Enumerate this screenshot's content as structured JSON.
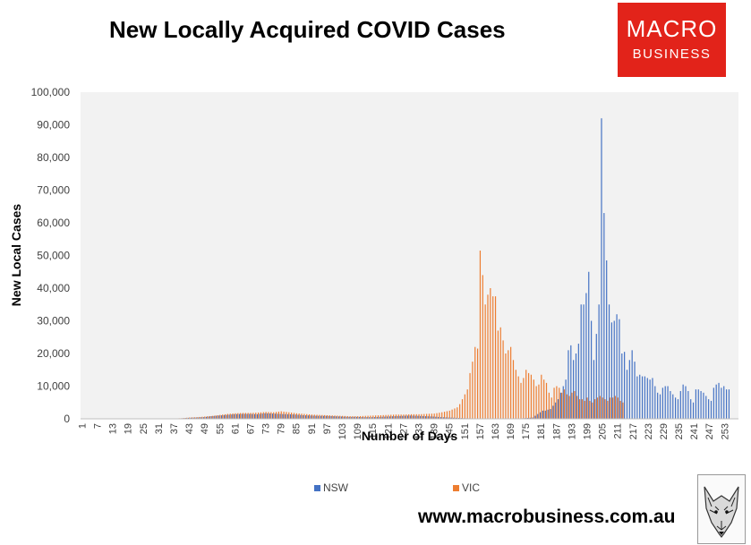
{
  "title": "New Locally Acquired COVID Cases",
  "logo": {
    "line1": "MACRO",
    "line2": "BUSINESS",
    "color": "#e2231a"
  },
  "website": "www.macrobusiness.com.au",
  "chart_data": {
    "type": "bar",
    "title": "New Locally Acquired COVID Cases",
    "xlabel": "Number of Days",
    "ylabel": "New Local Cases",
    "x_range": [
      1,
      258
    ],
    "x_tick_labels": [
      "1",
      "7",
      "13",
      "19",
      "25",
      "31",
      "37",
      "43",
      "49",
      "55",
      "61",
      "67",
      "73",
      "79",
      "85",
      "91",
      "97",
      "103",
      "109",
      "115",
      "121",
      "127",
      "133",
      "139",
      "145",
      "151",
      "157",
      "163",
      "169",
      "175",
      "181",
      "187",
      "193",
      "199",
      "205",
      "211",
      "217",
      "223",
      "229",
      "235",
      "241",
      "247",
      "253"
    ],
    "y_tick_labels": [
      "0",
      "10,000",
      "20,000",
      "30,000",
      "40,000",
      "50,000",
      "60,000",
      "70,000",
      "80,000",
      "90,000",
      "100,000"
    ],
    "ylim": [
      0,
      100000
    ],
    "grid": false,
    "legend_position": "bottom",
    "series": [
      {
        "name": "NSW",
        "color": "#4472c4",
        "points": [
          [
            37,
            50
          ],
          [
            40,
            150
          ],
          [
            43,
            300
          ],
          [
            46,
            400
          ],
          [
            49,
            500
          ],
          [
            52,
            800
          ],
          [
            55,
            1000
          ],
          [
            58,
            1200
          ],
          [
            61,
            1400
          ],
          [
            64,
            1500
          ],
          [
            67,
            1500
          ],
          [
            70,
            1400
          ],
          [
            73,
            1700
          ],
          [
            76,
            1600
          ],
          [
            79,
            1500
          ],
          [
            82,
            1400
          ],
          [
            85,
            1300
          ],
          [
            88,
            1100
          ],
          [
            91,
            1000
          ],
          [
            94,
            900
          ],
          [
            97,
            900
          ],
          [
            100,
            800
          ],
          [
            103,
            700
          ],
          [
            106,
            600
          ],
          [
            109,
            600
          ],
          [
            112,
            500
          ],
          [
            115,
            500
          ],
          [
            118,
            600
          ],
          [
            121,
            700
          ],
          [
            124,
            800
          ],
          [
            127,
            900
          ],
          [
            130,
            1000
          ],
          [
            133,
            900
          ],
          [
            136,
            800
          ],
          [
            139,
            700
          ],
          [
            142,
            500
          ],
          [
            145,
            400
          ],
          [
            148,
            300
          ],
          [
            151,
            200
          ],
          [
            154,
            150
          ],
          [
            157,
            100
          ],
          [
            160,
            100
          ],
          [
            163,
            100
          ],
          [
            166,
            100
          ],
          [
            169,
            100
          ],
          [
            172,
            100
          ],
          [
            175,
            200
          ],
          [
            178,
            400
          ],
          [
            181,
            2000
          ],
          [
            182,
            2500
          ],
          [
            183,
            2500
          ],
          [
            184,
            2800
          ],
          [
            185,
            3000
          ],
          [
            186,
            4000
          ],
          [
            187,
            5000
          ],
          [
            188,
            6000
          ],
          [
            189,
            8000
          ],
          [
            190,
            10000
          ],
          [
            191,
            12000
          ],
          [
            192,
            21000
          ],
          [
            193,
            22500
          ],
          [
            194,
            18000
          ],
          [
            195,
            20000
          ],
          [
            196,
            23000
          ],
          [
            197,
            35000
          ],
          [
            198,
            35000
          ],
          [
            199,
            38500
          ],
          [
            200,
            45000
          ],
          [
            201,
            30000
          ],
          [
            202,
            18000
          ],
          [
            203,
            26000
          ],
          [
            204,
            35000
          ],
          [
            205,
            92000
          ],
          [
            206,
            63000
          ],
          [
            207,
            48500
          ],
          [
            208,
            35000
          ],
          [
            209,
            29500
          ],
          [
            210,
            30000
          ],
          [
            211,
            32000
          ],
          [
            212,
            30500
          ],
          [
            213,
            20000
          ],
          [
            214,
            20500
          ],
          [
            215,
            15000
          ],
          [
            216,
            18000
          ],
          [
            217,
            21000
          ],
          [
            218,
            17500
          ],
          [
            219,
            13000
          ],
          [
            220,
            13500
          ],
          [
            221,
            13000
          ],
          [
            222,
            13000
          ],
          [
            223,
            12500
          ],
          [
            224,
            12000
          ],
          [
            225,
            12500
          ],
          [
            226,
            10000
          ],
          [
            227,
            8000
          ],
          [
            228,
            7500
          ],
          [
            229,
            9500
          ],
          [
            230,
            10000
          ],
          [
            231,
            10000
          ],
          [
            232,
            8500
          ],
          [
            233,
            7500
          ],
          [
            234,
            6500
          ],
          [
            235,
            6000
          ],
          [
            236,
            8500
          ],
          [
            237,
            10500
          ],
          [
            238,
            10000
          ],
          [
            239,
            8500
          ],
          [
            240,
            6000
          ],
          [
            241,
            5000
          ],
          [
            242,
            9000
          ],
          [
            243,
            9000
          ],
          [
            244,
            8500
          ],
          [
            245,
            8000
          ],
          [
            246,
            7000
          ],
          [
            247,
            6000
          ],
          [
            248,
            5500
          ],
          [
            249,
            9500
          ],
          [
            250,
            10500
          ],
          [
            251,
            11000
          ],
          [
            252,
            9500
          ],
          [
            253,
            10000
          ],
          [
            254,
            9000
          ],
          [
            255,
            9000
          ]
        ]
      },
      {
        "name": "VIC",
        "color": "#ed7d31",
        "points": [
          [
            37,
            100
          ],
          [
            40,
            200
          ],
          [
            43,
            400
          ],
          [
            46,
            500
          ],
          [
            49,
            700
          ],
          [
            52,
            900
          ],
          [
            55,
            1200
          ],
          [
            58,
            1500
          ],
          [
            61,
            1700
          ],
          [
            64,
            1800
          ],
          [
            67,
            1800
          ],
          [
            70,
            1900
          ],
          [
            73,
            2100
          ],
          [
            76,
            2000
          ],
          [
            79,
            2300
          ],
          [
            82,
            2000
          ],
          [
            85,
            1700
          ],
          [
            88,
            1500
          ],
          [
            91,
            1300
          ],
          [
            94,
            1200
          ],
          [
            97,
            1100
          ],
          [
            100,
            1000
          ],
          [
            103,
            900
          ],
          [
            106,
            800
          ],
          [
            109,
            800
          ],
          [
            112,
            900
          ],
          [
            115,
            1000
          ],
          [
            118,
            1100
          ],
          [
            121,
            1200
          ],
          [
            124,
            1300
          ],
          [
            127,
            1300
          ],
          [
            130,
            1400
          ],
          [
            133,
            1400
          ],
          [
            136,
            1500
          ],
          [
            139,
            1600
          ],
          [
            142,
            2000
          ],
          [
            145,
            2500
          ],
          [
            148,
            3500
          ],
          [
            149,
            4500
          ],
          [
            150,
            6000
          ],
          [
            151,
            7500
          ],
          [
            152,
            9000
          ],
          [
            153,
            14000
          ],
          [
            154,
            17500
          ],
          [
            155,
            22000
          ],
          [
            156,
            21500
          ],
          [
            157,
            51500
          ],
          [
            158,
            44000
          ],
          [
            159,
            35000
          ],
          [
            160,
            38000
          ],
          [
            161,
            40000
          ],
          [
            162,
            37500
          ],
          [
            163,
            37500
          ],
          [
            164,
            27000
          ],
          [
            165,
            28000
          ],
          [
            166,
            24000
          ],
          [
            167,
            20000
          ],
          [
            168,
            21000
          ],
          [
            169,
            22000
          ],
          [
            170,
            18000
          ],
          [
            171,
            15000
          ],
          [
            172,
            13000
          ],
          [
            173,
            11000
          ],
          [
            174,
            12500
          ],
          [
            175,
            15000
          ],
          [
            176,
            14000
          ],
          [
            177,
            13500
          ],
          [
            178,
            12000
          ],
          [
            179,
            10000
          ],
          [
            180,
            10500
          ],
          [
            181,
            13500
          ],
          [
            182,
            12000
          ],
          [
            183,
            11000
          ],
          [
            184,
            8000
          ],
          [
            185,
            6500
          ],
          [
            186,
            9500
          ],
          [
            187,
            10000
          ],
          [
            188,
            9500
          ],
          [
            189,
            8000
          ],
          [
            190,
            9000
          ],
          [
            191,
            7500
          ],
          [
            192,
            7000
          ],
          [
            193,
            8000
          ],
          [
            194,
            8500
          ],
          [
            195,
            7000
          ],
          [
            196,
            6000
          ],
          [
            197,
            6000
          ],
          [
            198,
            5500
          ],
          [
            199,
            6500
          ],
          [
            200,
            5500
          ],
          [
            201,
            5000
          ],
          [
            202,
            6000
          ],
          [
            203,
            6500
          ],
          [
            204,
            7000
          ],
          [
            205,
            6500
          ],
          [
            206,
            6000
          ],
          [
            207,
            5500
          ],
          [
            208,
            6500
          ],
          [
            209,
            6500
          ],
          [
            210,
            7000
          ],
          [
            211,
            6500
          ],
          [
            212,
            5500
          ],
          [
            213,
            5000
          ]
        ]
      }
    ]
  }
}
